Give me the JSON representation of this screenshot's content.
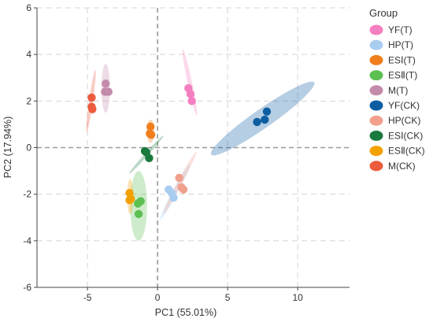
{
  "chart_data": {
    "type": "scatter",
    "title": "",
    "xlabel": "PC1 (55.01%)",
    "ylabel": "PC2 (17.94%)",
    "xlim": [
      -8.6,
      13.7
    ],
    "ylim": [
      -6,
      6
    ],
    "x_ticks": [
      -5,
      0,
      5,
      10
    ],
    "y_ticks": [
      -6,
      -4,
      -2,
      0,
      2,
      4,
      6
    ],
    "grid": "dashed",
    "zero_lines": "dashed",
    "legend_title": "Group",
    "legend_position": "right",
    "series": [
      {
        "name": "YF(T)",
        "color": "#f47fc0",
        "points": [
          [
            2.2,
            2.55
          ],
          [
            2.35,
            2.3
          ],
          [
            2.45,
            2.0
          ]
        ],
        "ellipse": {
          "cx": 2.3,
          "cy": 2.8,
          "rx": 1.45,
          "ry": 0.16,
          "angle_deg": -78
        }
      },
      {
        "name": "HP(T)",
        "color": "#a9cdef",
        "points": [
          [
            0.8,
            -1.8
          ],
          [
            1.0,
            -1.95
          ],
          [
            1.15,
            -2.15
          ]
        ],
        "ellipse": {
          "cx": 1.25,
          "cy": -1.9,
          "rx": 1.35,
          "ry": 0.2,
          "angle_deg": 62
        }
      },
      {
        "name": "ESⅠ(T)",
        "color": "#f07e1d",
        "points": [
          [
            -0.5,
            0.9
          ],
          [
            -0.55,
            0.6
          ],
          [
            -0.45,
            0.55
          ]
        ],
        "ellipse": {
          "cx": -0.5,
          "cy": 0.7,
          "rx": 0.5,
          "ry": 0.28,
          "angle_deg": 90
        }
      },
      {
        "name": "ESⅡ(T)",
        "color": "#5cbf52",
        "points": [
          [
            -1.2,
            -2.3
          ],
          [
            -1.4,
            -2.4
          ],
          [
            -1.35,
            -2.85
          ]
        ],
        "ellipse": {
          "cx": -1.35,
          "cy": -2.5,
          "rx": 1.5,
          "ry": 0.6,
          "angle_deg": 90
        }
      },
      {
        "name": "M(T)",
        "color": "#c48aaa",
        "points": [
          [
            -3.7,
            2.75
          ],
          [
            -3.75,
            2.4
          ],
          [
            -3.5,
            2.4
          ]
        ],
        "ellipse": {
          "cx": -3.7,
          "cy": 2.55,
          "rx": 1.05,
          "ry": 0.3,
          "angle_deg": 90
        }
      },
      {
        "name": "YF(CK)",
        "color": "#0d5ea1",
        "points": [
          [
            7.8,
            1.55
          ],
          [
            7.1,
            1.1
          ],
          [
            7.65,
            1.2
          ]
        ],
        "ellipse": {
          "cx": 7.5,
          "cy": 1.25,
          "rx": 2.7,
          "ry": 0.68,
          "angle_deg": 35
        }
      },
      {
        "name": "HP(CK)",
        "color": "#f0a08d",
        "points": [
          [
            1.55,
            -1.3
          ],
          [
            1.7,
            -1.7
          ],
          [
            1.85,
            -1.8
          ]
        ],
        "ellipse": {
          "cx": 1.6,
          "cy": -1.5,
          "rx": 1.5,
          "ry": 0.17,
          "angle_deg": 62
        }
      },
      {
        "name": "ESⅠ(CK)",
        "color": "#1a7a3e",
        "points": [
          [
            -0.9,
            -0.15
          ],
          [
            -0.8,
            -0.2
          ],
          [
            -0.6,
            -0.45
          ]
        ],
        "ellipse": {
          "cx": -0.8,
          "cy": -0.3,
          "rx": 1.1,
          "ry": 0.12,
          "angle_deg": 48
        }
      },
      {
        "name": "ESⅡ(CK)",
        "color": "#f2a100",
        "points": [
          [
            -2.0,
            -1.95
          ],
          [
            -2.0,
            -2.25
          ],
          [
            -1.9,
            -2.2
          ]
        ],
        "ellipse": {
          "cx": -1.95,
          "cy": -2.1,
          "rx": 0.75,
          "ry": 0.22,
          "angle_deg": 90
        }
      },
      {
        "name": "M(CK)",
        "color": "#ec5b3c",
        "points": [
          [
            -4.7,
            2.15
          ],
          [
            -4.7,
            1.75
          ],
          [
            -4.65,
            1.65
          ]
        ],
        "ellipse": {
          "cx": -4.75,
          "cy": 2.0,
          "rx": 1.35,
          "ry": 0.14,
          "angle_deg": 82
        }
      }
    ]
  }
}
